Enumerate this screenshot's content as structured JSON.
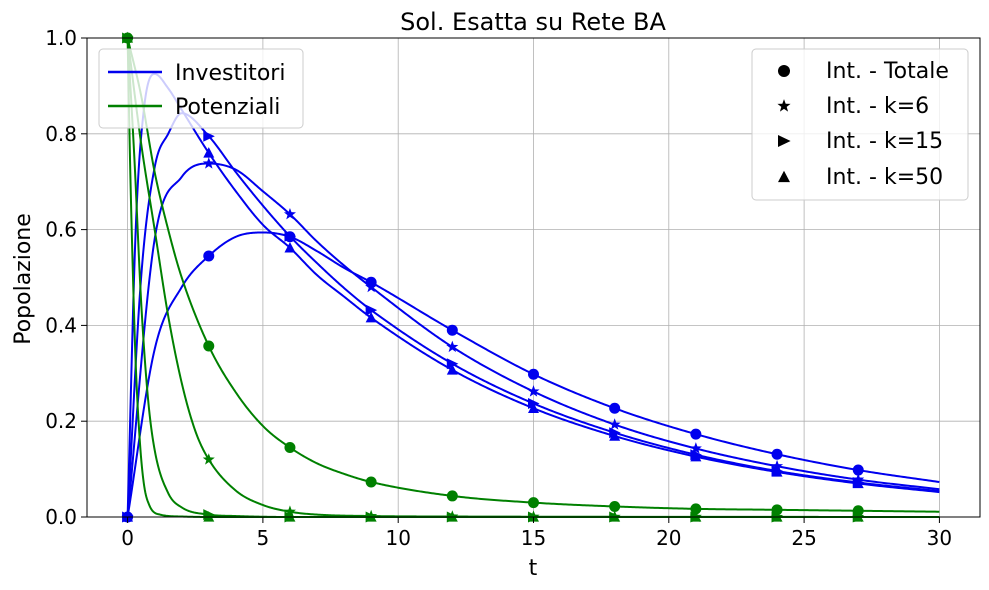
{
  "chart_data": {
    "type": "line",
    "title": "Sol. Esatta su Rete BA",
    "xlabel": "t",
    "ylabel": "Popolazione",
    "xlim": [
      -1.5,
      31.5
    ],
    "ylim": [
      0.0,
      1.0
    ],
    "xticks": [
      0,
      5,
      10,
      15,
      20,
      25,
      30
    ],
    "yticks": [
      0.0,
      0.2,
      0.4,
      0.6,
      0.8,
      1.0
    ],
    "grid": true,
    "colors": {
      "investors": "#0000ee",
      "potentials": "#008000"
    },
    "legends": [
      {
        "placement": "top-left",
        "entries": [
          {
            "label": "Investitori",
            "kind": "line",
            "color": "#0000ee"
          },
          {
            "label": "Potenziali",
            "kind": "line",
            "color": "#008000"
          }
        ]
      },
      {
        "placement": "top-right",
        "entries": [
          {
            "label": "Int. - Totale",
            "marker": "circle"
          },
          {
            "label": "Int. - k=6",
            "marker": "star"
          },
          {
            "label": "Int. - k=15",
            "marker": "triangle-right"
          },
          {
            "label": "Int. - k=50",
            "marker": "triangle-up"
          }
        ]
      }
    ],
    "marker_x": [
      0,
      3,
      6,
      9,
      12,
      15,
      18,
      21,
      24,
      27
    ],
    "series": [
      {
        "group": "Investitori",
        "marker": "circle",
        "color": "#0000ee",
        "x": [
          0,
          1,
          2,
          3,
          4,
          5,
          6,
          7,
          8,
          9,
          12,
          15,
          18,
          21,
          24,
          27,
          30
        ],
        "y": [
          0.0,
          0.35,
          0.48,
          0.545,
          0.585,
          0.594,
          0.585,
          0.555,
          0.52,
          0.49,
          0.39,
          0.298,
          0.227,
          0.173,
          0.131,
          0.098,
          0.073
        ]
      },
      {
        "group": "Investitori",
        "marker": "star",
        "color": "#0000ee",
        "x": [
          0,
          1,
          2,
          3,
          4,
          5,
          6,
          7,
          8,
          9,
          12,
          15,
          18,
          21,
          24,
          27,
          30
        ],
        "y": [
          0.0,
          0.58,
          0.71,
          0.738,
          0.725,
          0.68,
          0.632,
          0.575,
          0.525,
          0.48,
          0.355,
          0.262,
          0.193,
          0.143,
          0.106,
          0.078,
          0.058
        ]
      },
      {
        "group": "Investitori",
        "marker": "triangle-right",
        "color": "#0000ee",
        "x": [
          0,
          0.5,
          1,
          1.5,
          2,
          3,
          4,
          5,
          6,
          7,
          8,
          9,
          12,
          15,
          18,
          21,
          24,
          27,
          30
        ],
        "y": [
          0.0,
          0.5,
          0.73,
          0.8,
          0.843,
          0.795,
          0.72,
          0.65,
          0.586,
          0.53,
          0.478,
          0.432,
          0.32,
          0.237,
          0.176,
          0.13,
          0.096,
          0.072,
          0.054
        ]
      },
      {
        "group": "Investitori",
        "marker": "triangle-up",
        "color": "#0000ee",
        "x": [
          0,
          0.3,
          0.6,
          1,
          1.5,
          2,
          3,
          4,
          5,
          6,
          7,
          8,
          9,
          12,
          15,
          18,
          21,
          24,
          27,
          30
        ],
        "y": [
          0.0,
          0.6,
          0.85,
          0.925,
          0.895,
          0.85,
          0.76,
          0.68,
          0.61,
          0.562,
          0.505,
          0.46,
          0.416,
          0.307,
          0.227,
          0.169,
          0.126,
          0.094,
          0.07,
          0.052
        ]
      },
      {
        "group": "Potenziali",
        "marker": "circle",
        "color": "#008000",
        "x": [
          0,
          0.5,
          1,
          1.5,
          2,
          3,
          4,
          5,
          6,
          7,
          8,
          9,
          12,
          15,
          18,
          21,
          24,
          27,
          30
        ],
        "y": [
          1.0,
          0.88,
          0.72,
          0.6,
          0.5,
          0.357,
          0.26,
          0.19,
          0.145,
          0.112,
          0.09,
          0.073,
          0.044,
          0.03,
          0.022,
          0.017,
          0.015,
          0.013,
          0.011
        ]
      },
      {
        "group": "Potenziali",
        "marker": "star",
        "color": "#008000",
        "x": [
          0,
          0.5,
          1,
          1.5,
          2,
          2.5,
          3,
          4,
          5,
          6,
          7,
          9,
          12,
          30
        ],
        "y": [
          1.0,
          0.78,
          0.6,
          0.42,
          0.28,
          0.18,
          0.12,
          0.055,
          0.025,
          0.011,
          0.005,
          0.002,
          0.001,
          0.0
        ]
      },
      {
        "group": "Potenziali",
        "marker": "triangle-right",
        "color": "#008000",
        "x": [
          0,
          0.25,
          0.5,
          0.75,
          1,
          1.5,
          2,
          3,
          4,
          6,
          30
        ],
        "y": [
          1.0,
          0.75,
          0.45,
          0.25,
          0.14,
          0.05,
          0.02,
          0.005,
          0.002,
          0.0,
          0.0
        ]
      },
      {
        "group": "Potenziali",
        "marker": "triangle-up",
        "color": "#008000",
        "x": [
          0,
          0.1,
          0.2,
          0.3,
          0.45,
          0.6,
          0.8,
          1.2,
          2,
          3,
          30
        ],
        "y": [
          1.0,
          0.72,
          0.5,
          0.32,
          0.16,
          0.07,
          0.025,
          0.005,
          0.001,
          0.0,
          0.0
        ]
      }
    ]
  }
}
